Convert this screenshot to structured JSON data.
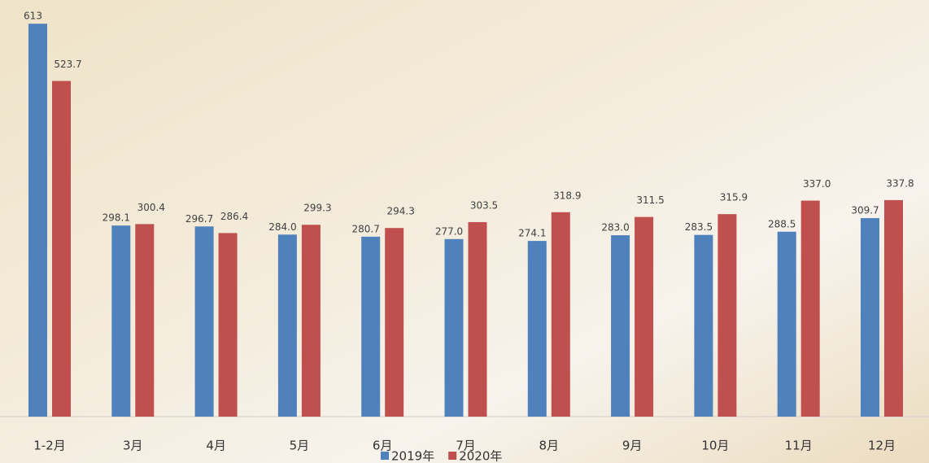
{
  "chart_data": {
    "type": "bar",
    "categories": [
      "1-2月",
      "3月",
      "4月",
      "5月",
      "6月",
      "7月",
      "8月",
      "9月",
      "10月",
      "11月",
      "12月"
    ],
    "series": [
      {
        "name": "2019年",
        "color": "#4f81bd",
        "values": [
          613,
          298.1,
          296.7,
          284.0,
          280.7,
          277.0,
          274.1,
          283.0,
          283.5,
          288.5,
          309.7
        ],
        "value_labels": [
          "613",
          "298.1",
          "296.7",
          "284.0",
          "280.7",
          "277.0",
          "274.1",
          "283.0",
          "283.5",
          "288.5",
          "309.7"
        ]
      },
      {
        "name": "2020年",
        "color": "#c0504d",
        "values": [
          523.7,
          300.4,
          286.4,
          299.3,
          294.3,
          303.5,
          318.9,
          311.5,
          315.9,
          337.0,
          337.8
        ],
        "value_labels": [
          "523.7",
          "300.4",
          "286.4",
          "299.3",
          "294.3",
          "303.5",
          "318.9",
          "311.5",
          "315.9",
          "337.0",
          "337.8"
        ]
      }
    ],
    "ylim": [
      0,
      650
    ],
    "legend": "bottom"
  }
}
